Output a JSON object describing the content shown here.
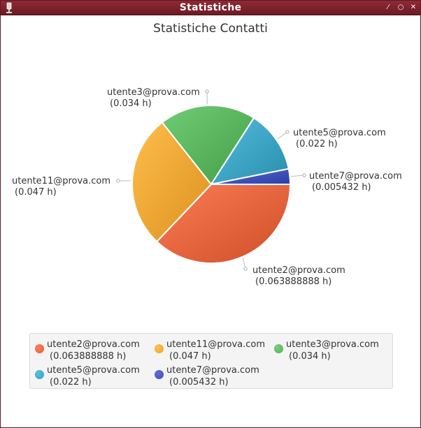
{
  "window": {
    "title": "Statistiche"
  },
  "chart_data": {
    "type": "pie",
    "title": "Statistiche Contatti",
    "slices": [
      {
        "name": "utente2@prova.com",
        "value": 0.063888888,
        "value_label": "(0.063888888 h)",
        "color": "#e0603a"
      },
      {
        "name": "utente11@prova.com",
        "value": 0.047,
        "value_label": "(0.047 h)",
        "color": "#eda230"
      },
      {
        "name": "utente3@prova.com",
        "value": 0.034,
        "value_label": "(0.034 h)",
        "color": "#55b05a"
      },
      {
        "name": "utente5@prova.com",
        "value": 0.022,
        "value_label": "(0.022 h)",
        "color": "#3aa0c0"
      },
      {
        "name": "utente7@prova.com",
        "value": 0.005432,
        "value_label": "(0.005432 h)",
        "color": "#3e50b8"
      }
    ],
    "legend_position": "bottom"
  }
}
